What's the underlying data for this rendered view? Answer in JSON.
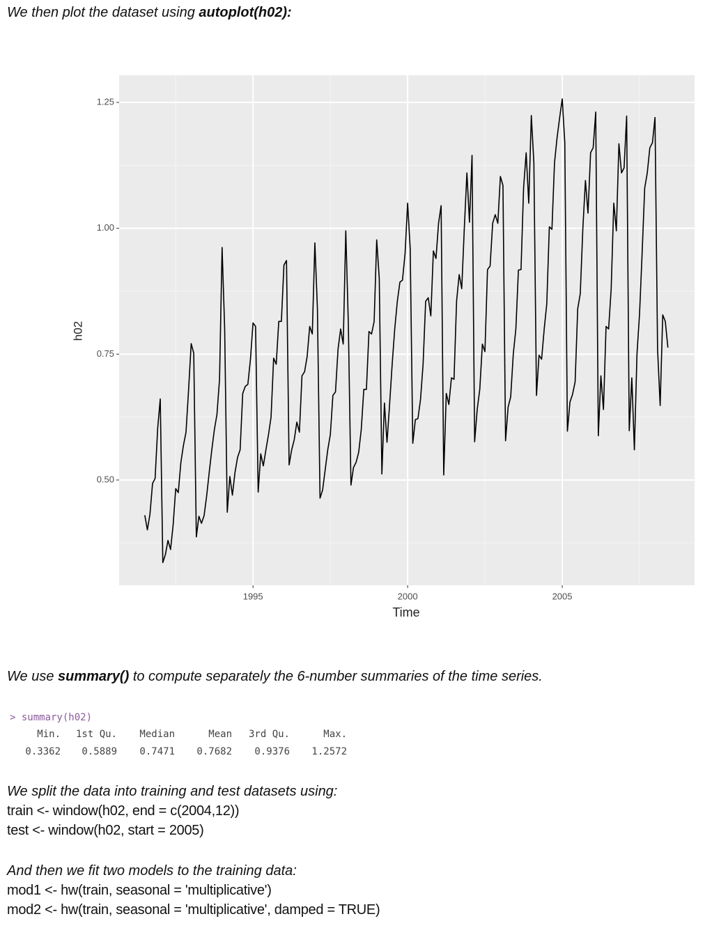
{
  "intro": {
    "text": "We then plot the dataset using ",
    "code": "autoplot(h02):"
  },
  "chart_data": {
    "type": "line",
    "xlabel": "Time",
    "ylabel": "h02",
    "color": "#000000",
    "xlim": [
      1990.67,
      2009.28
    ],
    "ylim": [
      0.291,
      1.304
    ],
    "xticks": [
      1995,
      2000,
      2005
    ],
    "yticks": [
      {
        "value": 0.5,
        "label": "0.50"
      },
      0.75,
      {
        "value": 1,
        "label": "1.00"
      },
      1.25
    ],
    "xticks_minor": [
      1992.5,
      1997.5,
      2002.5,
      2007.5
    ],
    "yticks_minor": [
      0.375,
      0.625,
      0.875,
      1.125
    ],
    "grid": true,
    "x": [
      1991.5,
      1991.583,
      1991.667,
      1991.75,
      1991.833,
      1991.917,
      1992,
      1992.083,
      1992.167,
      1992.25,
      1992.333,
      1992.417,
      1992.5,
      1992.583,
      1992.667,
      1992.75,
      1992.833,
      1992.917,
      1993,
      1993.083,
      1993.167,
      1993.25,
      1993.333,
      1993.417,
      1993.5,
      1993.583,
      1993.667,
      1993.75,
      1993.833,
      1993.917,
      1994,
      1994.083,
      1994.167,
      1994.25,
      1994.333,
      1994.417,
      1994.5,
      1994.583,
      1994.667,
      1994.75,
      1994.833,
      1994.917,
      1995,
      1995.083,
      1995.167,
      1995.25,
      1995.333,
      1995.417,
      1995.5,
      1995.583,
      1995.667,
      1995.75,
      1995.833,
      1995.917,
      1996,
      1996.083,
      1996.167,
      1996.25,
      1996.333,
      1996.417,
      1996.5,
      1996.583,
      1996.667,
      1996.75,
      1996.833,
      1996.917,
      1997,
      1997.083,
      1997.167,
      1997.25,
      1997.333,
      1997.417,
      1997.5,
      1997.583,
      1997.667,
      1997.75,
      1997.833,
      1997.917,
      1998,
      1998.083,
      1998.167,
      1998.25,
      1998.333,
      1998.417,
      1998.5,
      1998.583,
      1998.667,
      1998.75,
      1998.833,
      1998.917,
      1999,
      1999.083,
      1999.167,
      1999.25,
      1999.333,
      1999.417,
      1999.5,
      1999.583,
      1999.667,
      1999.75,
      1999.833,
      1999.917,
      2000,
      2000.083,
      2000.167,
      2000.25,
      2000.333,
      2000.417,
      2000.5,
      2000.583,
      2000.667,
      2000.75,
      2000.833,
      2000.917,
      2001,
      2001.083,
      2001.167,
      2001.25,
      2001.333,
      2001.417,
      2001.5,
      2001.583,
      2001.667,
      2001.75,
      2001.833,
      2001.917,
      2002,
      2002.083,
      2002.167,
      2002.25,
      2002.333,
      2002.417,
      2002.5,
      2002.583,
      2002.667,
      2002.75,
      2002.833,
      2002.917,
      2003,
      2003.083,
      2003.167,
      2003.25,
      2003.333,
      2003.417,
      2003.5,
      2003.583,
      2003.667,
      2003.75,
      2003.833,
      2003.917,
      2004,
      2004.083,
      2004.167,
      2004.25,
      2004.333,
      2004.417,
      2004.5,
      2004.583,
      2004.667,
      2004.75,
      2004.833,
      2004.917,
      2005,
      2005.083,
      2005.167,
      2005.25,
      2005.333,
      2005.417,
      2005.5,
      2005.583,
      2005.667,
      2005.75,
      2005.833,
      2005.917,
      2006,
      2006.083,
      2006.167,
      2006.25,
      2006.333,
      2006.417,
      2006.5,
      2006.583,
      2006.667,
      2006.75,
      2006.833,
      2006.917,
      2007,
      2007.083,
      2007.167,
      2007.25,
      2007.333,
      2007.417,
      2007.5,
      2007.583,
      2007.667,
      2007.75,
      2007.833,
      2007.917,
      2008,
      2008.083,
      2008.167,
      2008.25,
      2008.333,
      2008.417
    ],
    "values": [
      0.43,
      0.401,
      0.432,
      0.493,
      0.503,
      0.603,
      0.661,
      0.336,
      0.352,
      0.38,
      0.362,
      0.411,
      0.483,
      0.475,
      0.535,
      0.569,
      0.595,
      0.68,
      0.771,
      0.752,
      0.387,
      0.428,
      0.414,
      0.429,
      0.468,
      0.515,
      0.56,
      0.6,
      0.63,
      0.7,
      0.962,
      0.8,
      0.436,
      0.507,
      0.47,
      0.515,
      0.545,
      0.56,
      0.672,
      0.686,
      0.69,
      0.74,
      0.812,
      0.805,
      0.476,
      0.552,
      0.528,
      0.56,
      0.59,
      0.625,
      0.742,
      0.73,
      0.815,
      0.815,
      0.927,
      0.936,
      0.53,
      0.56,
      0.58,
      0.615,
      0.595,
      0.707,
      0.715,
      0.745,
      0.805,
      0.79,
      0.971,
      0.84,
      0.464,
      0.48,
      0.52,
      0.56,
      0.59,
      0.668,
      0.675,
      0.76,
      0.8,
      0.77,
      0.995,
      0.81,
      0.49,
      0.525,
      0.535,
      0.555,
      0.6,
      0.68,
      0.68,
      0.795,
      0.79,
      0.815,
      0.977,
      0.9,
      0.512,
      0.653,
      0.575,
      0.65,
      0.73,
      0.8,
      0.855,
      0.893,
      0.897,
      0.95,
      1.05,
      0.96,
      0.573,
      0.62,
      0.622,
      0.66,
      0.73,
      0.855,
      0.862,
      0.826,
      0.955,
      0.94,
      1.01,
      1.045,
      0.51,
      0.672,
      0.65,
      0.703,
      0.7,
      0.855,
      0.908,
      0.88,
      1.0,
      1.11,
      1.012,
      1.145,
      0.576,
      0.64,
      0.68,
      0.77,
      0.755,
      0.918,
      0.925,
      1.01,
      1.027,
      1.01,
      1.103,
      1.085,
      0.578,
      0.645,
      0.665,
      0.75,
      0.8,
      0.917,
      0.918,
      1.08,
      1.15,
      1.05,
      1.224,
      1.13,
      0.668,
      0.748,
      0.74,
      0.8,
      0.85,
      1.003,
      0.998,
      1.13,
      1.18,
      1.22,
      1.257,
      1.17,
      0.597,
      0.655,
      0.67,
      0.695,
      0.84,
      0.87,
      1.0,
      1.095,
      1.03,
      1.15,
      1.16,
      1.231,
      0.588,
      0.707,
      0.64,
      0.805,
      0.8,
      0.88,
      1.05,
      0.995,
      1.168,
      1.11,
      1.12,
      1.223,
      0.598,
      0.703,
      0.56,
      0.75,
      0.83,
      0.95,
      1.08,
      1.11,
      1.16,
      1.17,
      1.22,
      0.76,
      0.648,
      0.828,
      0.815,
      0.763
    ]
  },
  "summary_text": {
    "before": "We use ",
    "code": "summary()",
    "after": " to compute separately the 6-number summaries of the time series."
  },
  "console": {
    "command": "> summary(h02)",
    "headers": [
      "Min.",
      "1st Qu.",
      "Median",
      "Mean",
      "3rd Qu.",
      "Max."
    ],
    "values": [
      0.3362,
      0.5889,
      0.7471,
      0.7682,
      0.9376,
      1.2572
    ]
  },
  "split": {
    "text": "We split the data into training and test datasets using:",
    "lines": [
      "train <- window(h02, end = c(2004,12))",
      "test <- window(h02, start = 2005)"
    ]
  },
  "fit": {
    "text": "And then we fit two models to the training data:",
    "lines": [
      "mod1 <- hw(train, seasonal = 'multiplicative')",
      "mod2 <- hw(train, seasonal = 'multiplicative', damped = TRUE)"
    ]
  }
}
